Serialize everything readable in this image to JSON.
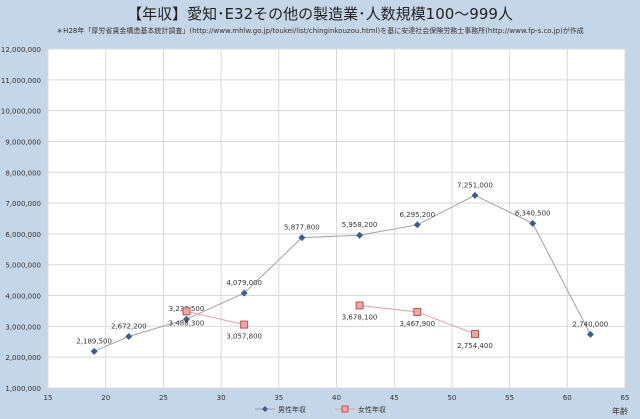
{
  "chart_data": {
    "type": "line",
    "title": "【年収】愛知･E32その他の製造業･人数規模100～999人",
    "subtitle": "＊H28年「厚労省賃金構造基本統計調査」(http://www.mhlw.go.jp/toukei/list/chinginkouzou.html)を基に安達社会保険労務士事務所(http://www.fp-s.co.jp)が作成",
    "xlabel": "年齢",
    "ylabel": "",
    "xlim": [
      15,
      65
    ],
    "ylim": [
      1000000,
      12000000
    ],
    "xticks": [
      15,
      20,
      25,
      30,
      35,
      40,
      45,
      50,
      55,
      60,
      65
    ],
    "yticks": [
      "1,000,000",
      "2,000,000",
      "3,000,000",
      "4,000,000",
      "5,000,000",
      "6,000,000",
      "7,000,000",
      "8,000,000",
      "9,000,000",
      "10,000,000",
      "11,000,000",
      "12,000,000"
    ],
    "grid": true,
    "legend": "bottom",
    "series": [
      {
        "name": "男性年収",
        "color": "#3f5f8a",
        "x": [
          19,
          22,
          27,
          32,
          37,
          42,
          47,
          52,
          57,
          62
        ],
        "values": [
          2189500,
          2672200,
          3232500,
          4079000,
          5877800,
          5958200,
          6295200,
          7251000,
          6340500,
          2740000
        ],
        "labels": [
          "2,189,500",
          "2,672,200",
          "3,232,500",
          "4,079,000",
          "5,877,800",
          "5,958,200",
          "6,295,200",
          "7,251,000",
          "6,340,500",
          "2,740,000"
        ]
      },
      {
        "name": "女性年収",
        "color": "#d98a8a",
        "x": [
          27,
          32,
          42,
          47,
          52
        ],
        "values": [
          3488300,
          3057800,
          3678100,
          3467900,
          2754400
        ],
        "labels": [
          "3,488,300",
          "3,057,800",
          "3,678,100",
          "3,467,900",
          "2,754,400"
        ]
      }
    ]
  }
}
